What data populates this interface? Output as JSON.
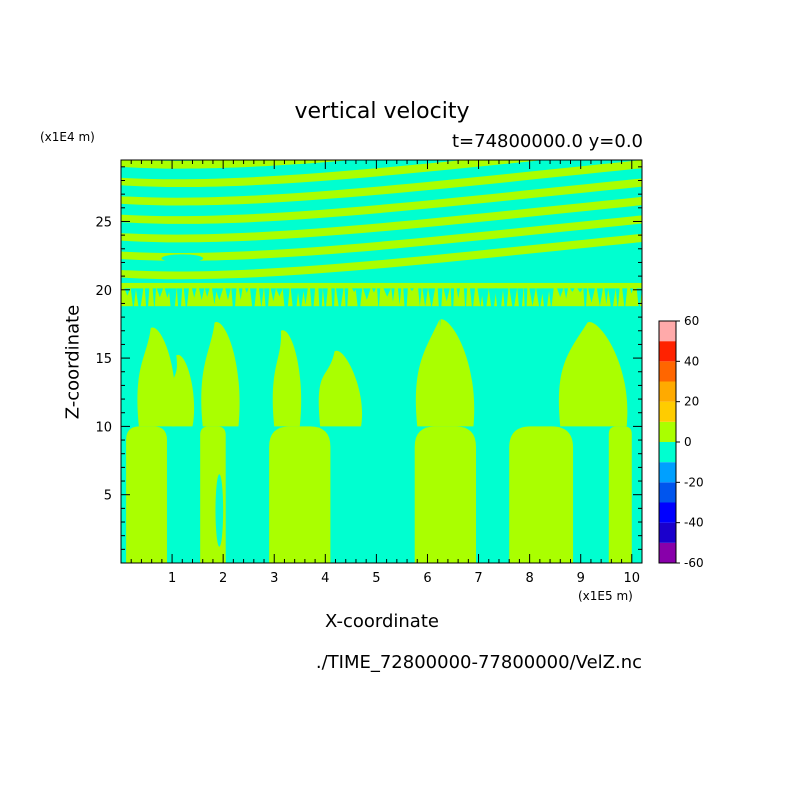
{
  "chart_data": {
    "type": "heatmap",
    "title": "vertical velocity",
    "subtitle": "t=74800000.0 y=0.0",
    "xlabel": "X-coordinate",
    "ylabel": "Z-coordinate",
    "x_unit": "(x1E5 m)",
    "y_unit": "(x1E4 m)",
    "xlim": [
      0,
      10.2
    ],
    "ylim": [
      0,
      29.5
    ],
    "x_ticks": [
      1,
      2,
      3,
      4,
      5,
      6,
      7,
      8,
      9,
      10
    ],
    "y_ticks": [
      5,
      10,
      15,
      20,
      25
    ],
    "colorbar": {
      "range": [
        -60,
        60
      ],
      "levels": [
        -60,
        -50,
        -40,
        -30,
        -20,
        -10,
        0,
        10,
        20,
        30,
        40,
        50,
        60
      ],
      "tick_labels": [
        "60",
        "40",
        "20",
        "0",
        "-20",
        "-40",
        "-60"
      ],
      "colors": [
        "#8800aa",
        "#1a00cc",
        "#0000ff",
        "#0055ee",
        "#00a0ff",
        "#00ffd0",
        "#aaff00",
        "#ffcc00",
        "#ffaa00",
        "#ff6600",
        "#ff2200",
        "#ffaaaa"
      ]
    },
    "field_colors": {
      "positive": "#aaff00",
      "negative": "#00ffd0"
    },
    "regions": {
      "lower_positive_columns_x": [
        [
          0.1,
          0.9
        ],
        [
          1.55,
          2.05
        ],
        [
          2.9,
          4.1
        ],
        [
          5.75,
          6.95
        ],
        [
          7.6,
          8.85
        ],
        [
          9.55,
          10.0
        ]
      ],
      "wave_band_z": [
        20.5,
        29.5
      ],
      "turbulent_band_z": [
        17.5,
        20.5
      ]
    }
  },
  "footnote": "./TIME_72800000-77800000/VelZ.nc"
}
